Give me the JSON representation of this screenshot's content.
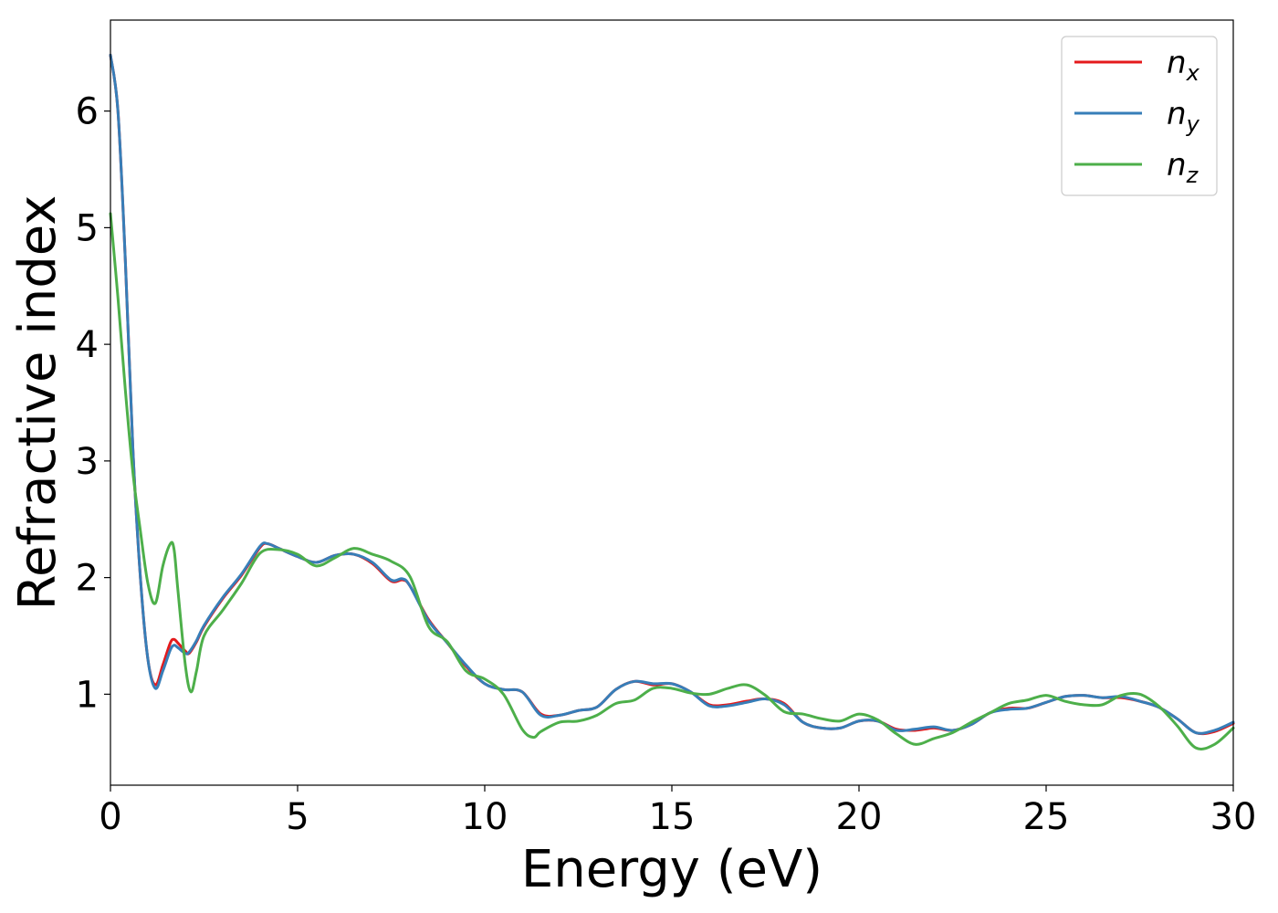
{
  "chart_data": {
    "type": "line",
    "title": "",
    "xlabel": "Energy (eV)",
    "ylabel": "Refractive index",
    "xlim": [
      0,
      30
    ],
    "ylim": [
      0.22,
      6.78
    ],
    "xticks": [
      0,
      5,
      10,
      15,
      20,
      25,
      30
    ],
    "yticks": [
      1,
      2,
      3,
      4,
      5,
      6
    ],
    "grid": false,
    "legend_position": "top-right",
    "series": [
      {
        "name": "n_x",
        "label_base": "n",
        "label_sub": "x",
        "color": "#e41a1c",
        "points": [
          [
            0,
            6.48
          ],
          [
            0.2,
            6.0
          ],
          [
            0.4,
            4.7
          ],
          [
            0.6,
            3.1
          ],
          [
            0.8,
            2.0
          ],
          [
            1.0,
            1.3
          ],
          [
            1.2,
            1.08
          ],
          [
            1.4,
            1.25
          ],
          [
            1.6,
            1.44
          ],
          [
            1.7,
            1.47
          ],
          [
            1.8,
            1.44
          ],
          [
            2.0,
            1.37
          ],
          [
            2.1,
            1.35
          ],
          [
            2.3,
            1.45
          ],
          [
            2.5,
            1.58
          ],
          [
            3.0,
            1.82
          ],
          [
            3.5,
            2.02
          ],
          [
            4.0,
            2.26
          ],
          [
            4.2,
            2.29
          ],
          [
            4.5,
            2.25
          ],
          [
            5.0,
            2.18
          ],
          [
            5.5,
            2.13
          ],
          [
            6.0,
            2.19
          ],
          [
            6.5,
            2.2
          ],
          [
            7.0,
            2.12
          ],
          [
            7.5,
            1.97
          ],
          [
            7.8,
            1.98
          ],
          [
            8.0,
            1.93
          ],
          [
            8.5,
            1.64
          ],
          [
            9.0,
            1.44
          ],
          [
            9.5,
            1.24
          ],
          [
            10.0,
            1.09
          ],
          [
            10.5,
            1.04
          ],
          [
            11.0,
            1.02
          ],
          [
            11.5,
            0.83
          ],
          [
            12.0,
            0.82
          ],
          [
            12.5,
            0.86
          ],
          [
            13.0,
            0.89
          ],
          [
            13.5,
            1.04
          ],
          [
            14.0,
            1.11
          ],
          [
            14.5,
            1.08
          ],
          [
            15.0,
            1.09
          ],
          [
            15.5,
            1.02
          ],
          [
            16.0,
            0.91
          ],
          [
            16.5,
            0.91
          ],
          [
            17.0,
            0.94
          ],
          [
            17.5,
            0.96
          ],
          [
            18.0,
            0.92
          ],
          [
            18.5,
            0.76
          ],
          [
            19.0,
            0.71
          ],
          [
            19.5,
            0.71
          ],
          [
            20.0,
            0.77
          ],
          [
            20.5,
            0.77
          ],
          [
            21.0,
            0.7
          ],
          [
            21.5,
            0.69
          ],
          [
            22.0,
            0.71
          ],
          [
            22.5,
            0.69
          ],
          [
            23.0,
            0.74
          ],
          [
            23.5,
            0.84
          ],
          [
            24.0,
            0.88
          ],
          [
            24.5,
            0.88
          ],
          [
            25.0,
            0.93
          ],
          [
            25.5,
            0.98
          ],
          [
            26.0,
            0.99
          ],
          [
            26.5,
            0.97
          ],
          [
            27.0,
            0.97
          ],
          [
            27.5,
            0.94
          ],
          [
            28.0,
            0.89
          ],
          [
            28.5,
            0.79
          ],
          [
            29.0,
            0.67
          ],
          [
            29.5,
            0.68
          ],
          [
            30.0,
            0.75
          ]
        ]
      },
      {
        "name": "n_y",
        "label_base": "n",
        "label_sub": "y",
        "color": "#377eb8",
        "points": [
          [
            0,
            6.48
          ],
          [
            0.2,
            6.0
          ],
          [
            0.4,
            4.7
          ],
          [
            0.6,
            3.1
          ],
          [
            0.8,
            2.0
          ],
          [
            1.0,
            1.3
          ],
          [
            1.2,
            1.05
          ],
          [
            1.4,
            1.2
          ],
          [
            1.6,
            1.38
          ],
          [
            1.7,
            1.42
          ],
          [
            1.8,
            1.4
          ],
          [
            2.0,
            1.35
          ],
          [
            2.1,
            1.36
          ],
          [
            2.3,
            1.46
          ],
          [
            2.5,
            1.59
          ],
          [
            3.0,
            1.83
          ],
          [
            3.5,
            2.03
          ],
          [
            4.0,
            2.27
          ],
          [
            4.2,
            2.29
          ],
          [
            4.5,
            2.25
          ],
          [
            5.0,
            2.18
          ],
          [
            5.5,
            2.13
          ],
          [
            6.0,
            2.19
          ],
          [
            6.5,
            2.2
          ],
          [
            7.0,
            2.13
          ],
          [
            7.5,
            1.98
          ],
          [
            7.8,
            1.99
          ],
          [
            8.0,
            1.93
          ],
          [
            8.5,
            1.63
          ],
          [
            9.0,
            1.44
          ],
          [
            9.5,
            1.25
          ],
          [
            10.0,
            1.09
          ],
          [
            10.5,
            1.04
          ],
          [
            11.0,
            1.02
          ],
          [
            11.5,
            0.82
          ],
          [
            12.0,
            0.82
          ],
          [
            12.5,
            0.86
          ],
          [
            13.0,
            0.89
          ],
          [
            13.5,
            1.04
          ],
          [
            14.0,
            1.11
          ],
          [
            14.5,
            1.09
          ],
          [
            15.0,
            1.09
          ],
          [
            15.5,
            1.02
          ],
          [
            16.0,
            0.9
          ],
          [
            16.5,
            0.9
          ],
          [
            17.0,
            0.93
          ],
          [
            17.5,
            0.96
          ],
          [
            18.0,
            0.91
          ],
          [
            18.5,
            0.76
          ],
          [
            19.0,
            0.71
          ],
          [
            19.5,
            0.71
          ],
          [
            20.0,
            0.77
          ],
          [
            20.5,
            0.77
          ],
          [
            21.0,
            0.69
          ],
          [
            21.5,
            0.7
          ],
          [
            22.0,
            0.72
          ],
          [
            22.5,
            0.69
          ],
          [
            23.0,
            0.74
          ],
          [
            23.5,
            0.84
          ],
          [
            24.0,
            0.87
          ],
          [
            24.5,
            0.88
          ],
          [
            25.0,
            0.93
          ],
          [
            25.5,
            0.98
          ],
          [
            26.0,
            0.99
          ],
          [
            26.5,
            0.97
          ],
          [
            27.0,
            0.98
          ],
          [
            27.5,
            0.94
          ],
          [
            28.0,
            0.89
          ],
          [
            28.5,
            0.79
          ],
          [
            29.0,
            0.67
          ],
          [
            29.5,
            0.69
          ],
          [
            30.0,
            0.76
          ]
        ]
      },
      {
        "name": "n_z",
        "label_base": "n",
        "label_sub": "z",
        "color": "#4daf4a",
        "points": [
          [
            0,
            5.12
          ],
          [
            0.2,
            4.4
          ],
          [
            0.4,
            3.6
          ],
          [
            0.6,
            2.9
          ],
          [
            0.8,
            2.4
          ],
          [
            1.0,
            1.95
          ],
          [
            1.2,
            1.78
          ],
          [
            1.4,
            2.1
          ],
          [
            1.6,
            2.29
          ],
          [
            1.7,
            2.24
          ],
          [
            1.8,
            1.9
          ],
          [
            2.0,
            1.25
          ],
          [
            2.15,
            1.02
          ],
          [
            2.3,
            1.2
          ],
          [
            2.5,
            1.5
          ],
          [
            3.0,
            1.72
          ],
          [
            3.5,
            1.95
          ],
          [
            4.0,
            2.21
          ],
          [
            4.5,
            2.24
          ],
          [
            5.0,
            2.2
          ],
          [
            5.5,
            2.1
          ],
          [
            6.0,
            2.17
          ],
          [
            6.5,
            2.25
          ],
          [
            7.0,
            2.2
          ],
          [
            7.5,
            2.14
          ],
          [
            8.0,
            2.01
          ],
          [
            8.5,
            1.58
          ],
          [
            9.0,
            1.45
          ],
          [
            9.5,
            1.2
          ],
          [
            10.0,
            1.13
          ],
          [
            10.5,
            1.0
          ],
          [
            11.0,
            0.7
          ],
          [
            11.3,
            0.63
          ],
          [
            11.5,
            0.68
          ],
          [
            12.0,
            0.76
          ],
          [
            12.5,
            0.77
          ],
          [
            13.0,
            0.82
          ],
          [
            13.5,
            0.92
          ],
          [
            14.0,
            0.95
          ],
          [
            14.5,
            1.05
          ],
          [
            15.0,
            1.05
          ],
          [
            15.5,
            1.01
          ],
          [
            16.0,
            1.0
          ],
          [
            16.5,
            1.05
          ],
          [
            17.0,
            1.08
          ],
          [
            17.5,
            0.99
          ],
          [
            18.0,
            0.85
          ],
          [
            18.5,
            0.83
          ],
          [
            19.0,
            0.79
          ],
          [
            19.5,
            0.77
          ],
          [
            20.0,
            0.83
          ],
          [
            20.5,
            0.78
          ],
          [
            21.0,
            0.66
          ],
          [
            21.5,
            0.57
          ],
          [
            22.0,
            0.62
          ],
          [
            22.5,
            0.67
          ],
          [
            23.0,
            0.76
          ],
          [
            23.5,
            0.84
          ],
          [
            24.0,
            0.92
          ],
          [
            24.5,
            0.95
          ],
          [
            25.0,
            0.99
          ],
          [
            25.5,
            0.94
          ],
          [
            26.0,
            0.91
          ],
          [
            26.5,
            0.91
          ],
          [
            27.0,
            0.99
          ],
          [
            27.5,
            1.0
          ],
          [
            28.0,
            0.9
          ],
          [
            28.5,
            0.73
          ],
          [
            29.0,
            0.54
          ],
          [
            29.5,
            0.57
          ],
          [
            30.0,
            0.71
          ]
        ]
      }
    ]
  }
}
